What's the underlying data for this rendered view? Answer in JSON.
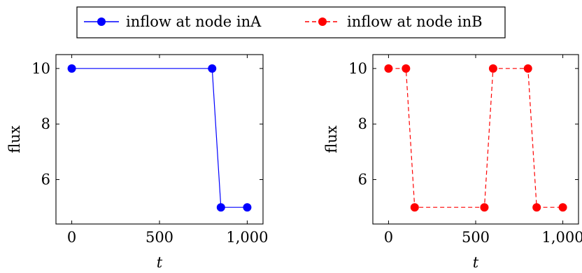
{
  "legend": {
    "items": [
      {
        "label": "inflow at node inA",
        "color": "#0000ff",
        "dash": "solid"
      },
      {
        "label": "inflow at node inB",
        "color": "#ff0000",
        "dash": "dashed"
      }
    ]
  },
  "chart_data": [
    {
      "type": "line",
      "xlabel": "t",
      "ylabel": "flux",
      "xlim": [
        -90,
        1090
      ],
      "ylim": [
        4.4,
        10.5
      ],
      "xticks": [
        0,
        500,
        1000
      ],
      "xtick_labels": [
        "0",
        "500",
        "1,000"
      ],
      "yticks": [
        6,
        8,
        10
      ],
      "ytick_labels": [
        "6",
        "8",
        "10"
      ],
      "grid": false,
      "series": [
        {
          "name": "inflow at node inA",
          "color": "#0000ff",
          "dash": "solid",
          "x": [
            0,
            800,
            850,
            1000
          ],
          "y": [
            10,
            10,
            5,
            5
          ]
        }
      ]
    },
    {
      "type": "line",
      "xlabel": "t",
      "ylabel": "flux",
      "xlim": [
        -90,
        1090
      ],
      "ylim": [
        4.4,
        10.5
      ],
      "xticks": [
        0,
        500,
        1000
      ],
      "xtick_labels": [
        "0",
        "500",
        "1,000"
      ],
      "yticks": [
        6,
        8,
        10
      ],
      "ytick_labels": [
        "6",
        "8",
        "10"
      ],
      "grid": false,
      "series": [
        {
          "name": "inflow at node inB",
          "color": "#ff0000",
          "dash": "dashed",
          "x": [
            0,
            100,
            150,
            550,
            600,
            800,
            850,
            1000
          ],
          "y": [
            10,
            10,
            5,
            5,
            10,
            10,
            5,
            5
          ]
        }
      ]
    }
  ]
}
